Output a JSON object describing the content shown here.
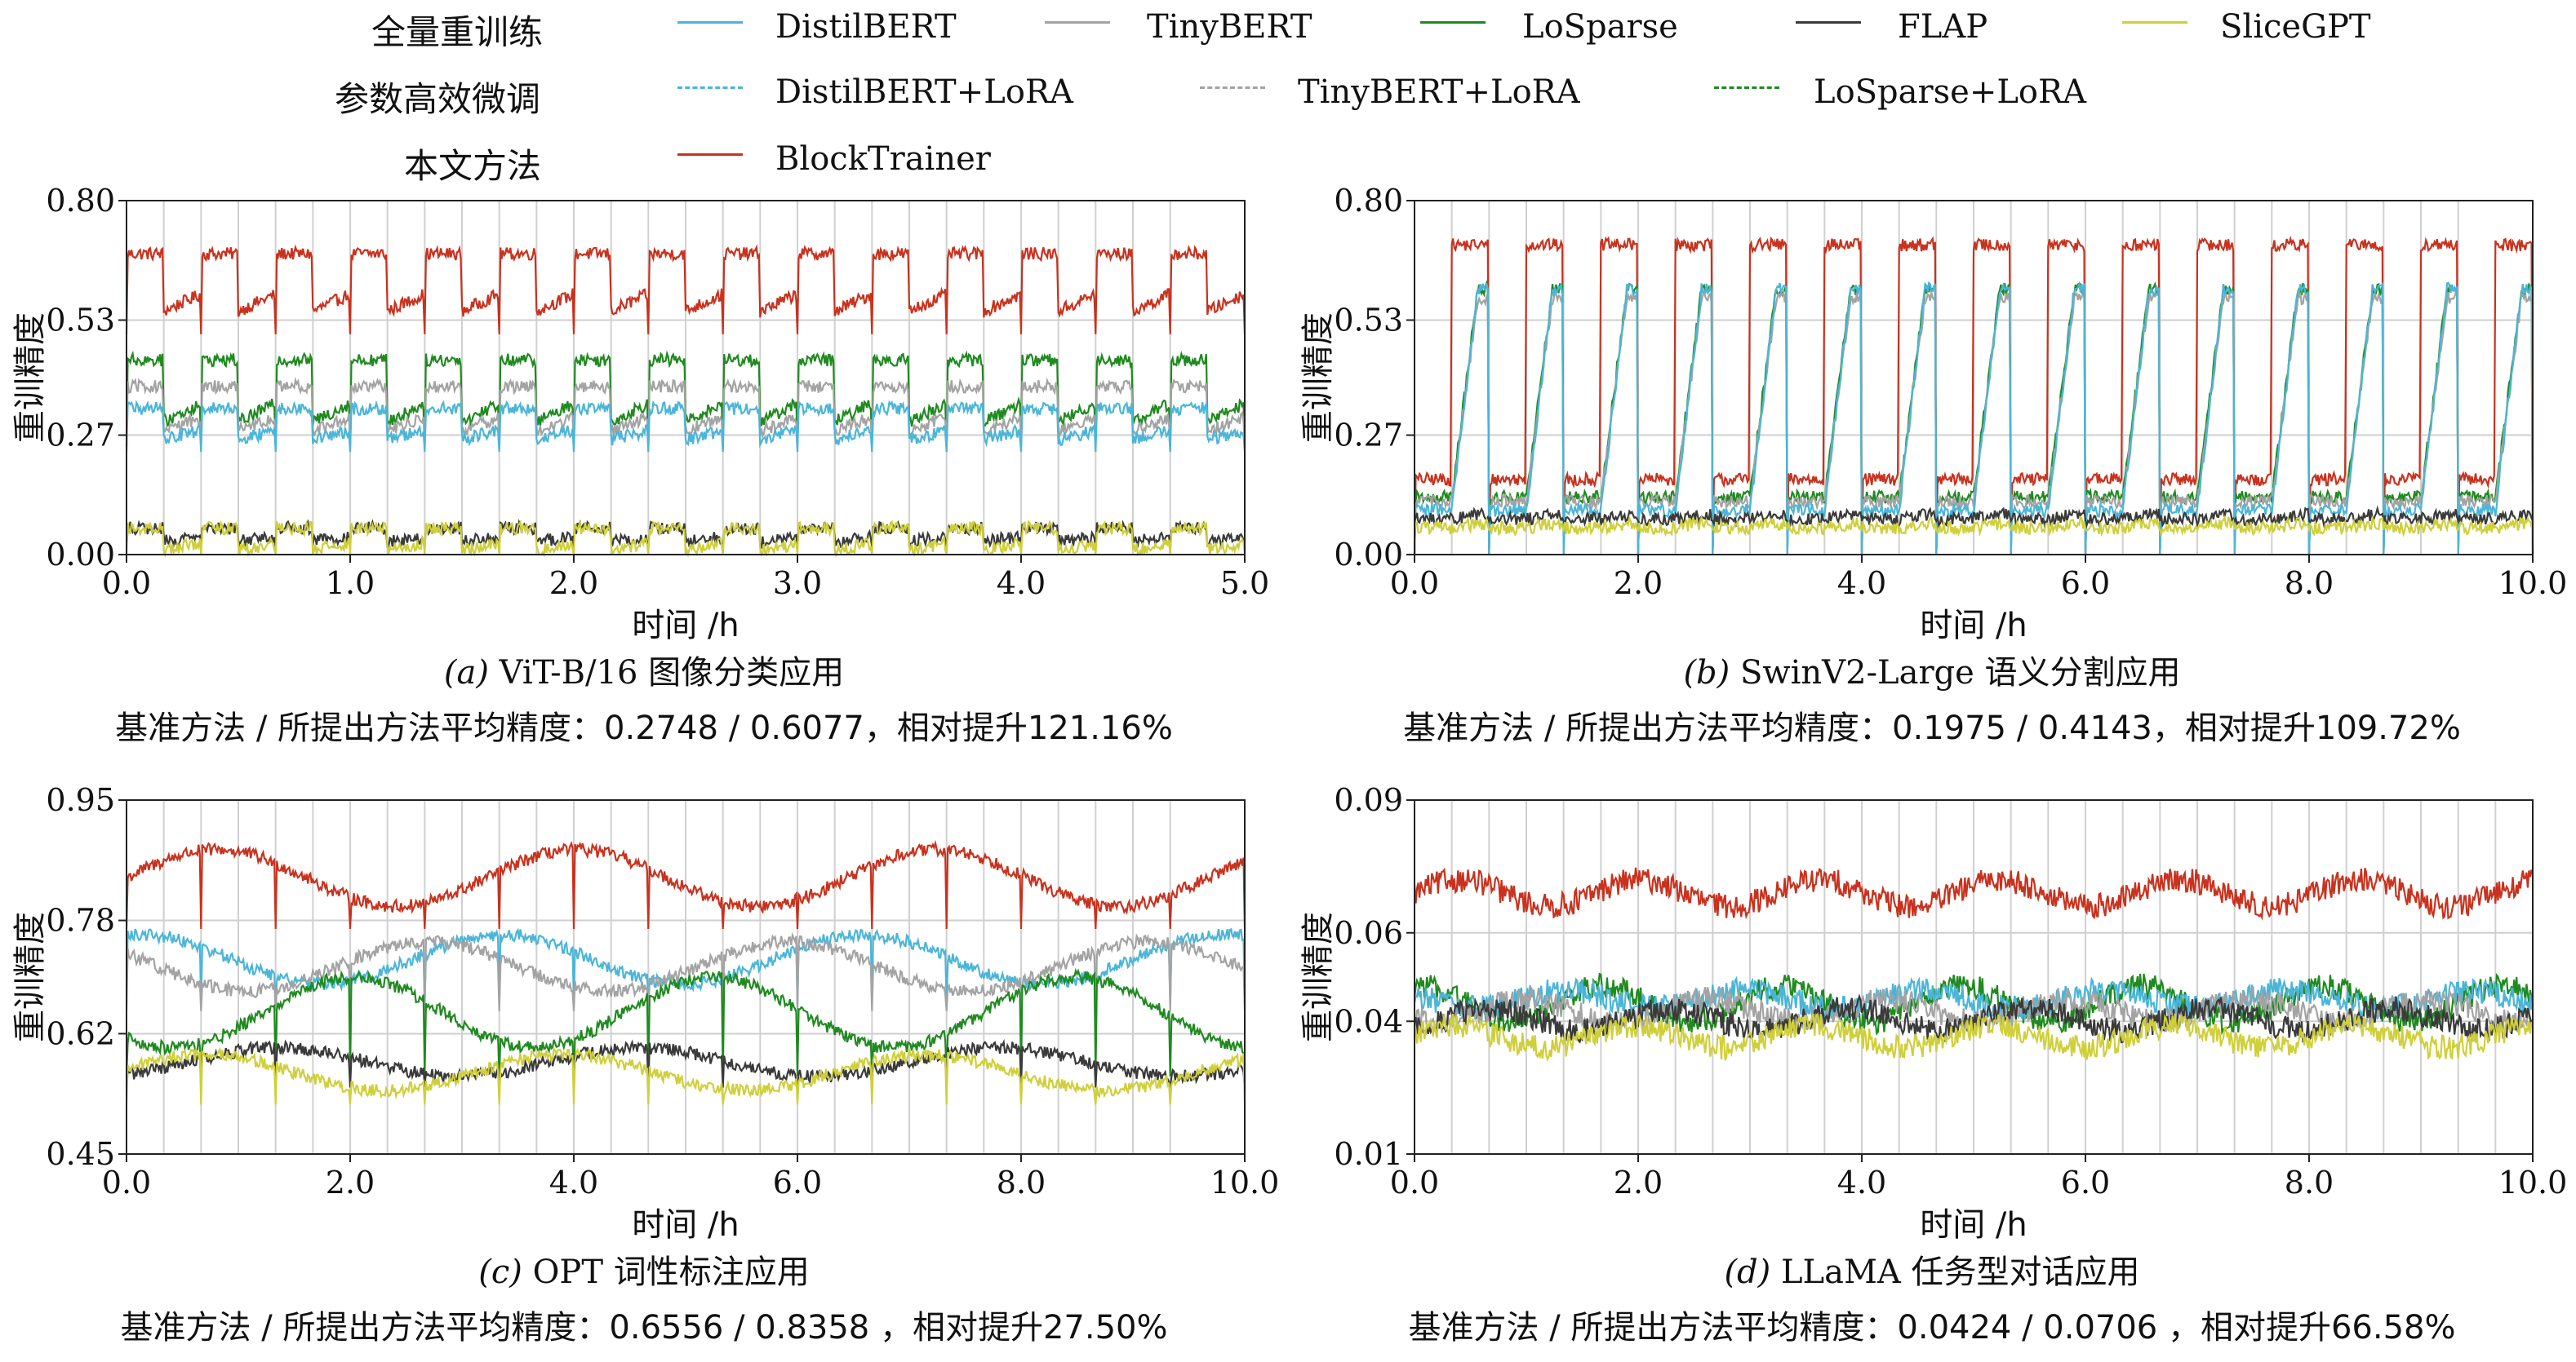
{
  "legend": {
    "groups": [
      "全量重训练",
      "参数高效微调",
      "本文方法"
    ],
    "items": [
      {
        "name": "DistilBERT",
        "color": "#4bb5d8",
        "dash": false,
        "group": 0
      },
      {
        "name": "TinyBERT",
        "color": "#a3a3a3",
        "dash": false,
        "group": 0
      },
      {
        "name": "LoSparse",
        "color": "#1f8a1f",
        "dash": false,
        "group": 0
      },
      {
        "name": "FLAP",
        "color": "#3a3a3a",
        "dash": false,
        "group": 0
      },
      {
        "name": "SliceGPT",
        "color": "#cfcf3a",
        "dash": false,
        "group": 0
      },
      {
        "name": "DistilBERT+LoRA",
        "color": "#4bb5d8",
        "dash": true,
        "group": 1
      },
      {
        "name": "TinyBERT+LoRA",
        "color": "#a3a3a3",
        "dash": true,
        "group": 1
      },
      {
        "name": "LoSparse+LoRA",
        "color": "#1f8a1f",
        "dash": true,
        "group": 1
      },
      {
        "name": "BlockTrainer",
        "color": "#c8321e",
        "dash": false,
        "group": 2
      }
    ]
  },
  "chart_data": [
    {
      "type": "line",
      "caption_label": "(a)",
      "caption": " ViT-B/16 图像分类应用",
      "summary": "基准方法 / 所提出方法平均精度：0.2748  / 0.6077，相对提升121.16%",
      "xlabel": "时间 /h",
      "ylabel": "重训精度",
      "xlim": [
        0.0,
        5.0
      ],
      "ylim": [
        0.0,
        0.8
      ],
      "xticks": [
        "0.0",
        "1.0",
        "2.0",
        "3.0",
        "4.0",
        "5.0"
      ],
      "yticks": [
        "0.00",
        "0.27",
        "0.53",
        "0.80"
      ],
      "grid": true,
      "periods": 15,
      "series": [
        {
          "name": "BlockTrainer",
          "levels": [
            0.55,
            0.68
          ]
        },
        {
          "name": "LoSparse",
          "levels": [
            0.3,
            0.44
          ]
        },
        {
          "name": "TinyBERT",
          "levels": [
            0.28,
            0.38
          ]
        },
        {
          "name": "DistilBERT",
          "levels": [
            0.26,
            0.33
          ]
        },
        {
          "name": "FLAP",
          "levels": [
            0.03,
            0.06
          ]
        },
        {
          "name": "SliceGPT",
          "levels": [
            0.01,
            0.06
          ]
        }
      ]
    },
    {
      "type": "line",
      "caption_label": "(b)",
      "caption": " SwinV2-Large  语义分割应用",
      "summary": "基准方法 / 所提出方法平均精度：0.1975  / 0.4143，相对提升109.72%",
      "xlabel": "时间 /h",
      "ylabel": "重训精度",
      "xlim": [
        0.0,
        10.0
      ],
      "ylim": [
        0.0,
        0.8
      ],
      "xticks": [
        "0.0",
        "2.0",
        "4.0",
        "6.0",
        "8.0",
        "10.0"
      ],
      "yticks": [
        "0.00",
        "0.27",
        "0.53",
        "0.80"
      ],
      "grid": true,
      "periods": 15,
      "series": [
        {
          "name": "BlockTrainer",
          "levels": [
            0.17,
            0.7
          ]
        },
        {
          "name": "LoSparse",
          "levels": [
            0.13,
            0.6
          ]
        },
        {
          "name": "TinyBERT",
          "levels": [
            0.12,
            0.58
          ]
        },
        {
          "name": "DistilBERT",
          "levels": [
            0.1,
            0.6
          ]
        },
        {
          "name": "FLAP",
          "levels": [
            0.08,
            0.09
          ]
        },
        {
          "name": "SliceGPT",
          "levels": [
            0.06,
            0.07
          ]
        }
      ]
    },
    {
      "type": "line",
      "caption_label": "(c)",
      "caption": " OPT  词性标注应用",
      "summary": "基准方法 / 所提出方法平均精度：0.6556  / 0.8358 ，相对提升27.50%",
      "xlabel": "时间 /h",
      "ylabel": "重训精度",
      "xlim": [
        0.0,
        10.0
      ],
      "ylim": [
        0.45,
        0.95
      ],
      "xticks": [
        "0.0",
        "2.0",
        "4.0",
        "6.0",
        "8.0",
        "10.0"
      ],
      "yticks": [
        "0.45",
        "0.62",
        "0.78",
        "0.95"
      ],
      "grid": true,
      "periods": 15,
      "series": [
        {
          "name": "BlockTrainer",
          "levels": [
            0.8,
            0.88
          ]
        },
        {
          "name": "DistilBERT",
          "levels": [
            0.69,
            0.76
          ]
        },
        {
          "name": "TinyBERT",
          "levels": [
            0.68,
            0.75
          ]
        },
        {
          "name": "LoSparse",
          "levels": [
            0.6,
            0.7
          ]
        },
        {
          "name": "FLAP",
          "levels": [
            0.56,
            0.6
          ]
        },
        {
          "name": "SliceGPT",
          "levels": [
            0.54,
            0.59
          ]
        }
      ]
    },
    {
      "type": "line",
      "caption_label": "(d)",
      "caption": " LLaMA  任务型对话应用",
      "summary": "基准方法 / 所提出方法平均精度：0.0424  / 0.0706 ，相对提升66.58%",
      "xlabel": "时间 /h",
      "ylabel": "重训精度",
      "xlim": [
        0.0,
        10.0
      ],
      "ylim": [
        0.01,
        0.09
      ],
      "xticks": [
        "0.0",
        "2.0",
        "4.0",
        "6.0",
        "8.0",
        "10.0"
      ],
      "yticks": [
        "0.01",
        "0.04",
        "0.06",
        "0.09"
      ],
      "grid": true,
      "periods": 30,
      "series": [
        {
          "name": "BlockTrainer",
          "levels": [
            0.066,
            0.072
          ]
        },
        {
          "name": "LoSparse",
          "levels": [
            0.04,
            0.048
          ]
        },
        {
          "name": "DistilBERT",
          "levels": [
            0.043,
            0.047
          ]
        },
        {
          "name": "TinyBERT",
          "levels": [
            0.04,
            0.045
          ]
        },
        {
          "name": "FLAP",
          "levels": [
            0.038,
            0.043
          ]
        },
        {
          "name": "SliceGPT",
          "levels": [
            0.034,
            0.039
          ]
        }
      ]
    }
  ]
}
